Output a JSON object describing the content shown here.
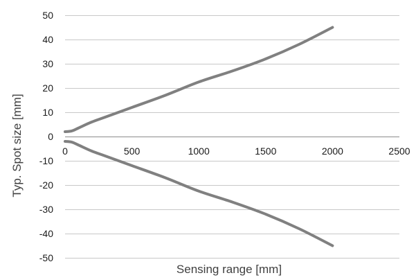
{
  "chart_data": {
    "type": "line",
    "title": "",
    "xlabel": "Sensing range [mm]",
    "ylabel": "Typ. Spot size [mm]",
    "xlim": [
      0,
      2500
    ],
    "ylim": [
      -50,
      50
    ],
    "x_ticks": [
      0,
      500,
      1000,
      1500,
      2000,
      2500
    ],
    "y_ticks": [
      50,
      40,
      30,
      20,
      10,
      0,
      -10,
      -20,
      -30,
      -40,
      -50
    ],
    "x_tick_labels": [
      "0",
      "500",
      "1000",
      "1500",
      "2000",
      "2500"
    ],
    "y_tick_labels": [
      "50",
      "40",
      "30",
      "20",
      "10",
      "0",
      "-10",
      "-20",
      "-30",
      "-40",
      "-50"
    ],
    "grid": "horizontal",
    "legend": "none",
    "line_color": "#808080",
    "series": [
      {
        "x": [
          0,
          50,
          100,
          200,
          300,
          500,
          750,
          1000,
          1250,
          1500,
          1750,
          2000
        ],
        "y": [
          2,
          2.3,
          3.5,
          6,
          8,
          12,
          17,
          22.5,
          27,
          32,
          38,
          45
        ]
      },
      {
        "x": [
          0,
          50,
          100,
          200,
          300,
          500,
          750,
          1000,
          1250,
          1500,
          1750,
          2000
        ],
        "y": [
          -2,
          -2.3,
          -3.5,
          -6,
          -8,
          -12,
          -17,
          -22.5,
          -27,
          -32,
          -38,
          -45
        ]
      }
    ]
  }
}
